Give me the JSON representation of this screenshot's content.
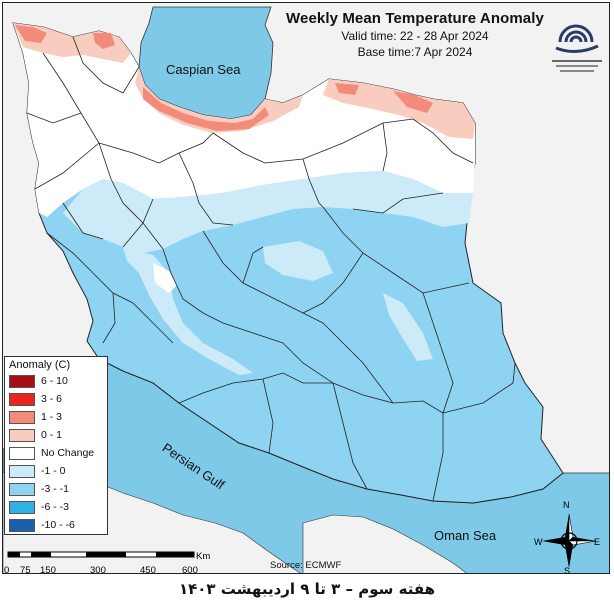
{
  "title": "Weekly Mean Temperature Anomaly",
  "valid_time": "Valid time: 22 - 28 Apr 2024",
  "base_time": "Base time:7 Apr 2024",
  "source": "Source: ECMWF",
  "footer": "هفته سوم – ۳ تا ۹ اردیبهشت ۱۴۰۳",
  "seas": {
    "caspian": "Caspian Sea",
    "persian_gulf": "Persian Gulf",
    "oman": "Oman Sea"
  },
  "legend": {
    "title": "Anomaly (C)",
    "items": [
      {
        "label": "6 - 10",
        "color": "#a50f15"
      },
      {
        "label": "3 - 6",
        "color": "#e8261f"
      },
      {
        "label": "1 - 3",
        "color": "#f28b7a"
      },
      {
        "label": "0 - 1",
        "color": "#f8cdbf"
      },
      {
        "label": "No Change",
        "color": "#ffffff"
      },
      {
        "label": "-1 - 0",
        "color": "#cdeaf8"
      },
      {
        "label": "-3 - -1",
        "color": "#8fd3f2"
      },
      {
        "label": "-6 - -3",
        "color": "#2fb1e6"
      },
      {
        "label": "-10 - -6",
        "color": "#1960ad"
      }
    ]
  },
  "scale_bar": {
    "ticks": [
      "0",
      "75",
      "150",
      "300",
      "450",
      "600"
    ],
    "unit": "Km"
  },
  "compass": {
    "n": "N",
    "s": "S",
    "e": "E",
    "w": "W"
  },
  "colors": {
    "sea": "#7ec8e8",
    "land_outside": "#f2f2f2",
    "warm_light": "#f8cdbf",
    "warm_mid": "#f28b7a",
    "cool_light": "#cdeaf8",
    "cool_mid": "#8fd3f2",
    "neutral": "#ffffff"
  }
}
